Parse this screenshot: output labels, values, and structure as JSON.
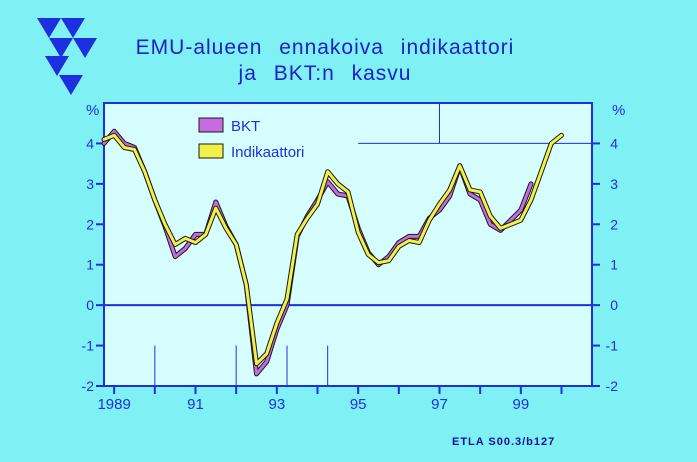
{
  "title_line1": "EMU-alueen ennakoiva indikaattori",
  "title_line2": "ja BKT:n kasvu",
  "source_note": "ETLA S00.3/b127",
  "logo_icon": "etla-logo-icon",
  "colors": {
    "background": "#7ff0f4",
    "plot_background": "#d6fefe",
    "axis": "#1e2fe0",
    "text": "#2020c8",
    "bkt": "#c66be0",
    "indicator": "#f4f04a"
  },
  "chart_data": {
    "type": "line",
    "title": "EMU-alueen ennakoiva indikaattori ja BKT:n kasvu",
    "ylabel_left": "%",
    "ylabel_right": "%",
    "xlim": [
      1988.75,
      2000.75
    ],
    "ylim": [
      -2,
      5
    ],
    "y_ticks": [
      -2,
      -1,
      0,
      1,
      2,
      3,
      4
    ],
    "x_tick_labels": [
      {
        "x": 1989.0,
        "label": "1989"
      },
      {
        "x": 1991.0,
        "label": "91"
      },
      {
        "x": 1993.0,
        "label": "93"
      },
      {
        "x": 1995.0,
        "label": "95"
      },
      {
        "x": 1997.0,
        "label": "97"
      },
      {
        "x": 1999.0,
        "label": "99"
      }
    ],
    "grid": "partial",
    "legend_position": "top-left",
    "series": [
      {
        "name": "BKT",
        "color": "#c66be0",
        "points": [
          [
            1988.75,
            4.0
          ],
          [
            1989.0,
            4.3
          ],
          [
            1989.25,
            4.0
          ],
          [
            1989.5,
            3.9
          ],
          [
            1989.75,
            3.3
          ],
          [
            1990.0,
            2.6
          ],
          [
            1990.25,
            1.95
          ],
          [
            1990.5,
            1.2
          ],
          [
            1990.75,
            1.4
          ],
          [
            1991.0,
            1.75
          ],
          [
            1991.25,
            1.75
          ],
          [
            1991.5,
            2.55
          ],
          [
            1991.75,
            1.95
          ],
          [
            1992.0,
            1.5
          ],
          [
            1992.25,
            0.5
          ],
          [
            1992.5,
            -1.7
          ],
          [
            1992.75,
            -1.4
          ],
          [
            1993.0,
            -0.6
          ],
          [
            1993.25,
            0.0
          ],
          [
            1993.5,
            1.7
          ],
          [
            1993.75,
            2.2
          ],
          [
            1994.0,
            2.6
          ],
          [
            1994.25,
            3.05
          ],
          [
            1994.5,
            2.75
          ],
          [
            1994.75,
            2.7
          ],
          [
            1995.0,
            1.9
          ],
          [
            1995.25,
            1.3
          ],
          [
            1995.5,
            1.0
          ],
          [
            1995.75,
            1.2
          ],
          [
            1996.0,
            1.55
          ],
          [
            1996.25,
            1.7
          ],
          [
            1996.5,
            1.7
          ],
          [
            1996.75,
            2.15
          ],
          [
            1997.0,
            2.35
          ],
          [
            1997.25,
            2.7
          ],
          [
            1997.5,
            3.45
          ],
          [
            1997.75,
            2.75
          ],
          [
            1998.0,
            2.6
          ],
          [
            1998.25,
            2.0
          ],
          [
            1998.5,
            1.85
          ],
          [
            1998.75,
            2.1
          ],
          [
            1999.0,
            2.35
          ],
          [
            1999.25,
            3.0
          ]
        ]
      },
      {
        "name": "Indikaattori",
        "color": "#f4f04a",
        "points": [
          [
            1988.75,
            4.1
          ],
          [
            1989.0,
            4.2
          ],
          [
            1989.25,
            3.9
          ],
          [
            1989.5,
            3.85
          ],
          [
            1989.75,
            3.3
          ],
          [
            1990.0,
            2.6
          ],
          [
            1990.25,
            2.0
          ],
          [
            1990.5,
            1.5
          ],
          [
            1990.75,
            1.65
          ],
          [
            1991.0,
            1.55
          ],
          [
            1991.25,
            1.75
          ],
          [
            1991.5,
            2.4
          ],
          [
            1991.75,
            1.9
          ],
          [
            1992.0,
            1.5
          ],
          [
            1992.25,
            0.5
          ],
          [
            1992.5,
            -1.45
          ],
          [
            1992.75,
            -1.2
          ],
          [
            1993.0,
            -0.45
          ],
          [
            1993.25,
            0.15
          ],
          [
            1993.5,
            1.75
          ],
          [
            1993.75,
            2.15
          ],
          [
            1994.0,
            2.5
          ],
          [
            1994.25,
            3.3
          ],
          [
            1994.5,
            3.0
          ],
          [
            1994.75,
            2.8
          ],
          [
            1995.0,
            1.8
          ],
          [
            1995.25,
            1.25
          ],
          [
            1995.5,
            1.05
          ],
          [
            1995.75,
            1.1
          ],
          [
            1996.0,
            1.45
          ],
          [
            1996.25,
            1.6
          ],
          [
            1996.5,
            1.55
          ],
          [
            1996.75,
            2.1
          ],
          [
            1997.0,
            2.5
          ],
          [
            1997.25,
            2.85
          ],
          [
            1997.5,
            3.45
          ],
          [
            1997.75,
            2.85
          ],
          [
            1998.0,
            2.8
          ],
          [
            1998.25,
            2.2
          ],
          [
            1998.5,
            1.9
          ],
          [
            1998.75,
            2.0
          ],
          [
            1999.0,
            2.1
          ],
          [
            1999.25,
            2.6
          ],
          [
            1999.5,
            3.3
          ],
          [
            1999.75,
            4.0
          ],
          [
            2000.0,
            4.2
          ]
        ]
      }
    ]
  }
}
